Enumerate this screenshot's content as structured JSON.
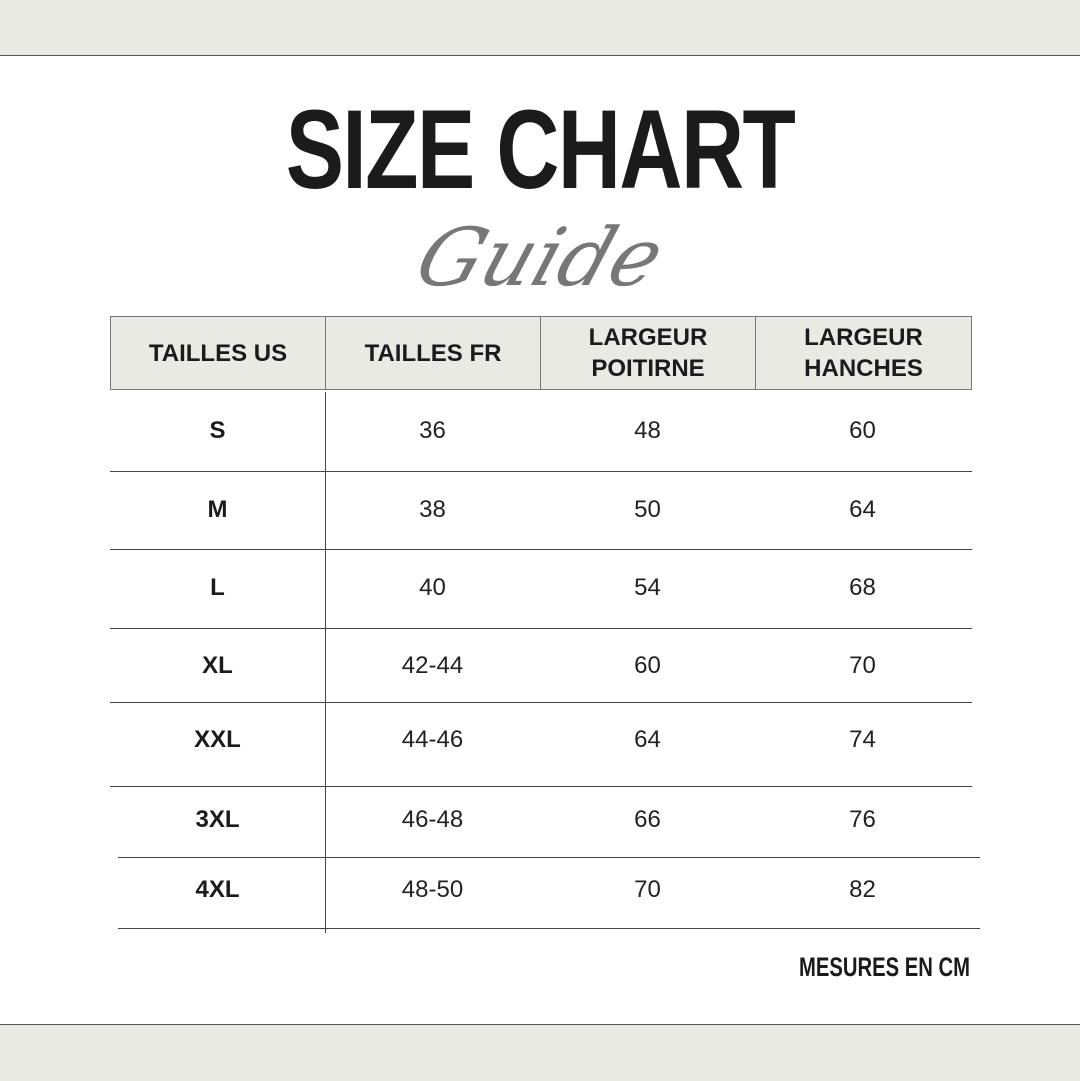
{
  "title": "SIZE CHART",
  "subtitle": "Guide",
  "table": {
    "headers": [
      "TAILLES US",
      "TAILLES FR",
      "LARGEUR POITIRNE",
      "LARGEUR HANCHES"
    ],
    "rows": [
      [
        "S",
        "36",
        "48",
        "60"
      ],
      [
        "M",
        "38",
        "50",
        "64"
      ],
      [
        "L",
        "40",
        "54",
        "68"
      ],
      [
        "XL",
        "42-44",
        "60",
        "70"
      ],
      [
        "XXL",
        "44-46",
        "64",
        "74"
      ],
      [
        "3XL",
        "46-48",
        "66",
        "76"
      ],
      [
        "4XL",
        "48-50",
        "70",
        "82"
      ]
    ]
  },
  "note": "MESURES EN CM",
  "colors": {
    "band": "#eaeae5",
    "text": "#1b1b1b",
    "script": "#777777"
  }
}
